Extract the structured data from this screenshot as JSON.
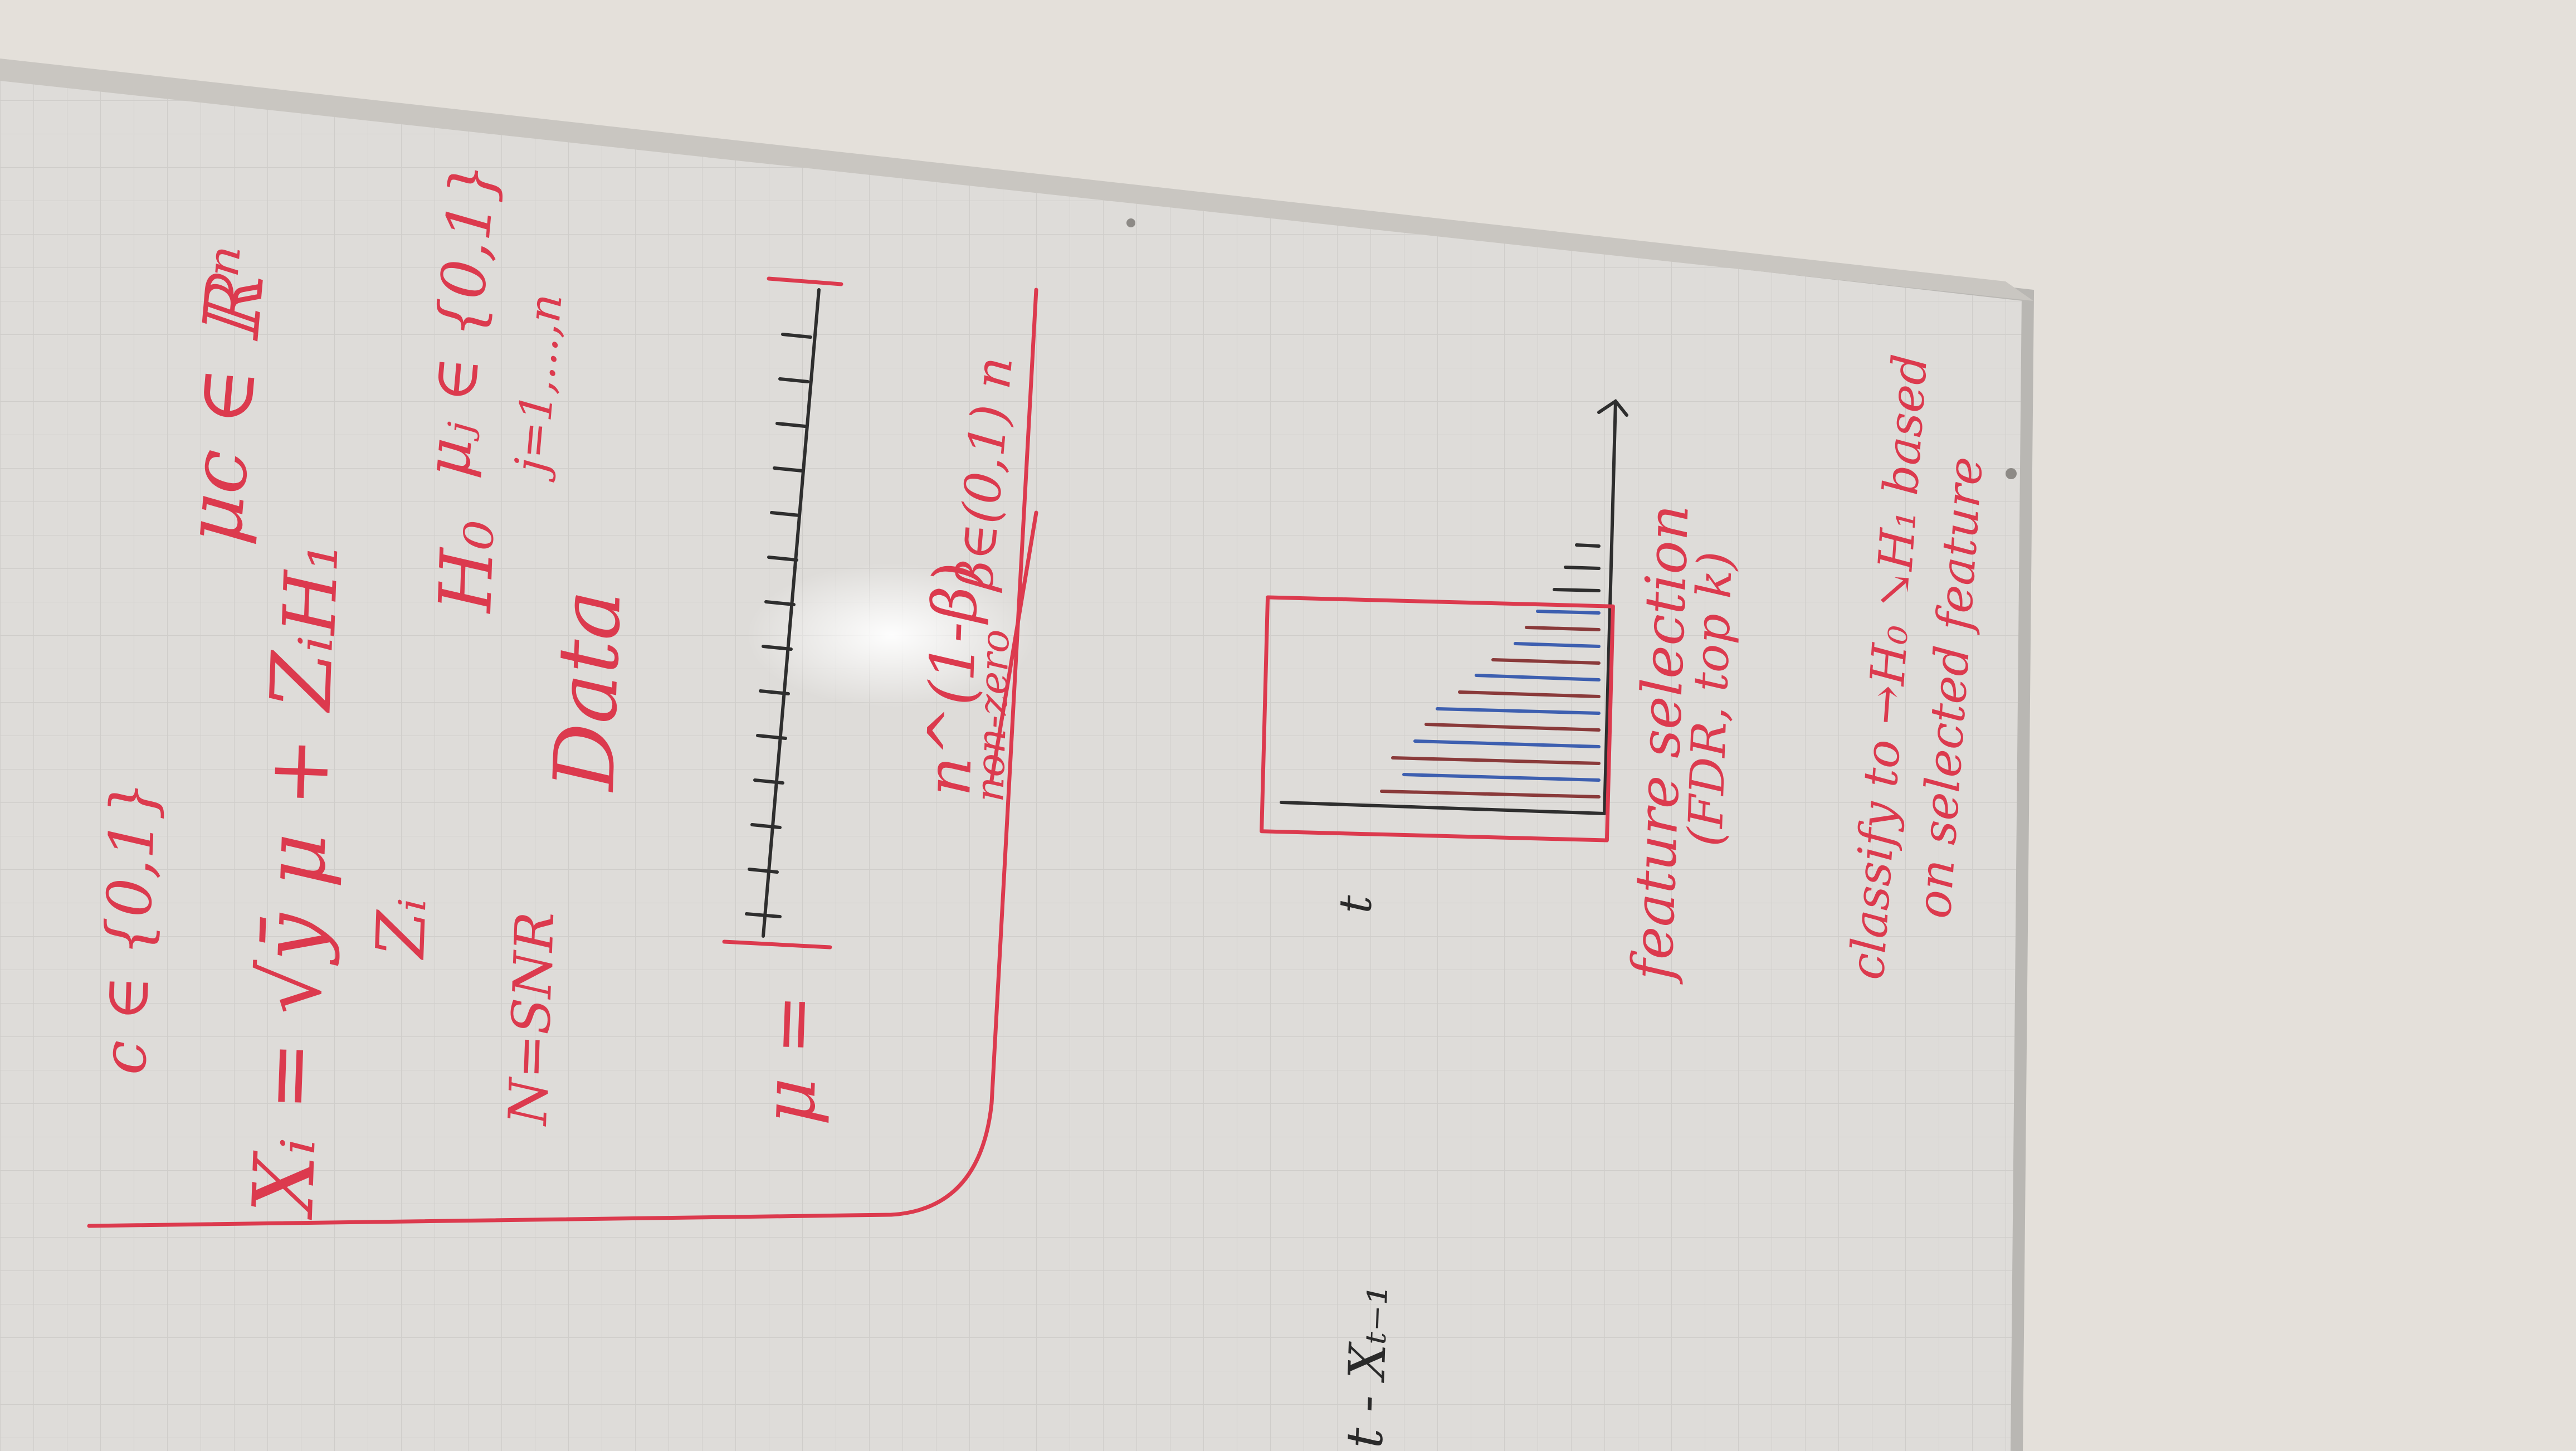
{
  "board_text": {
    "c_set": "c ∈ {0,1}",
    "x_equation": "Xᵢ = √ȳ μ + Zᵢ",
    "z_term": "Zᵢ",
    "n_snr": "N=SNR",
    "mu_vector": "μ =",
    "data_label": "Data",
    "h1_label": "H₁",
    "h0_label": "H₀",
    "mu_c_domain": "μc ∈ ℝⁿ",
    "mu_j_set": "μⱼ ∈ {0,1}",
    "j_range": "j=1,...,n",
    "beta_label": "n^(1-β)",
    "non_zero": "non-zero",
    "beta_range": "β∈(0,1) n",
    "t_axis": "t",
    "feature_selection": "feature selection",
    "fdr_topk": "(FDR, top k)",
    "classify_line": "classify to →H₀ ↘H₁ based",
    "on_selected": "on selected feature",
    "x_diff": "t - Xₜ₋₁"
  }
}
